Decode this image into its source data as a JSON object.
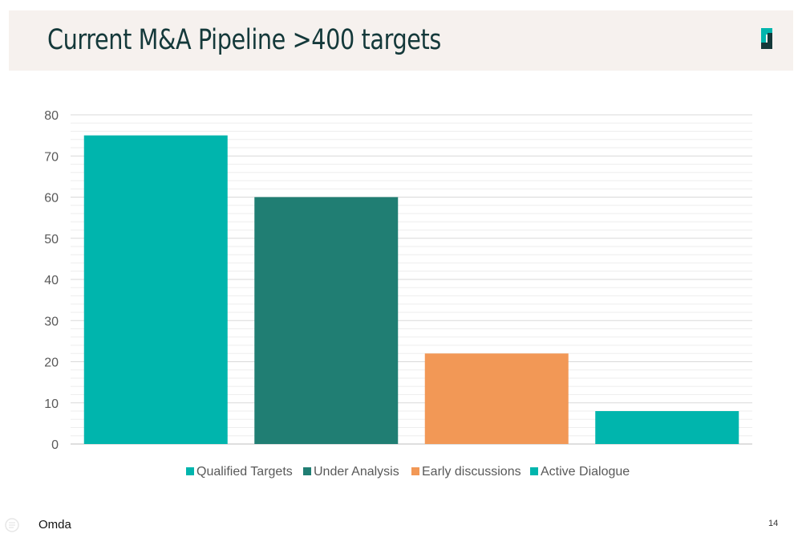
{
  "slide": {
    "title": "Current M&A Pipeline >400 targets",
    "brand_name": "Omda",
    "page_number": "14",
    "logo_icon": "omda-logo-icon",
    "accent_colors": {
      "teal": "#00b5ad",
      "dark_teal": "#207e73",
      "orange": "#f29856",
      "navy": "#14393a"
    }
  },
  "chart_data": {
    "type": "bar",
    "title": "",
    "xlabel": "",
    "ylabel": "",
    "ylim": [
      0,
      80
    ],
    "yticks": [
      0,
      10,
      20,
      30,
      40,
      50,
      60,
      70,
      80
    ],
    "grid": true,
    "minor_grid_step": 2,
    "legend_position": "bottom",
    "series": [
      {
        "name": "Qualified Targets",
        "value": 75,
        "color": "#00b5ad"
      },
      {
        "name": "Under Analysis",
        "value": 60,
        "color": "#207e73"
      },
      {
        "name": "Early discussions",
        "value": 22,
        "color": "#f29856"
      },
      {
        "name": "Active Dialogue",
        "value": 8,
        "color": "#00b5ad"
      }
    ]
  }
}
